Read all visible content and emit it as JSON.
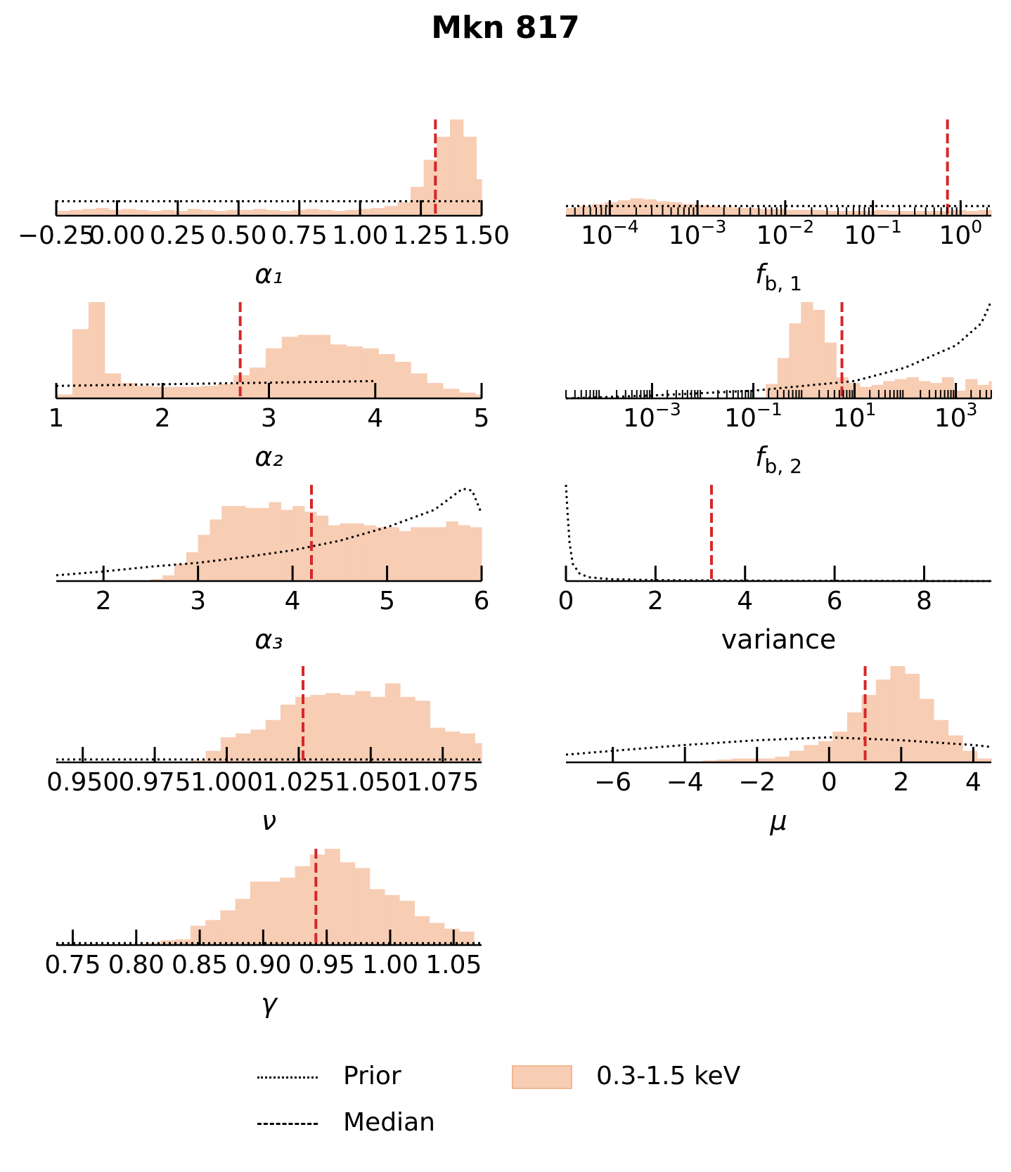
{
  "title": "Mkn 817",
  "colors": {
    "hist_fill": "#f7cdb4",
    "median": "#d62728",
    "prior": "#000000",
    "axis": "#000000"
  },
  "legend": {
    "placement": "bottom-center",
    "items": [
      {
        "label": "Prior",
        "style": "dotted"
      },
      {
        "label": "Median",
        "style": "dashed"
      },
      {
        "label": "0.3-1.5 keV",
        "style": "patch"
      }
    ]
  },
  "chart_data": [
    {
      "type": "bar",
      "xlabel": "α₁",
      "scale": "linear",
      "xlim": [
        -0.25,
        1.5
      ],
      "tick_values": [
        -0.25,
        0.0,
        0.25,
        0.5,
        0.75,
        1.0,
        1.25,
        1.5
      ],
      "tick_labels": [
        "−0.25",
        "0.00",
        "0.25",
        "0.50",
        "0.75",
        "1.00",
        "1.25",
        "1.50"
      ],
      "bins": {
        "start": -0.25,
        "width": 0.054,
        "counts": [
          0.05,
          0.06,
          0.07,
          0.08,
          0.06,
          0.07,
          0.06,
          0.05,
          0.06,
          0.05,
          0.07,
          0.06,
          0.05,
          0.06,
          0.06,
          0.07,
          0.06,
          0.05,
          0.06,
          0.07,
          0.06,
          0.05,
          0.06,
          0.07,
          0.08,
          0.1,
          0.14,
          0.3,
          0.58,
          0.82,
          1.0,
          0.82,
          0.38
        ]
      },
      "median": 1.31,
      "prior": {
        "x": [
          -0.25,
          1.5
        ],
        "y": [
          0.15,
          0.15
        ]
      }
    },
    {
      "type": "bar",
      "xlabel": "f_{b,1}",
      "scale": "log",
      "xlim": [
        -4.5,
        0.35
      ],
      "tick_values": [
        -4,
        -3,
        -2,
        -1,
        0
      ],
      "tick_labels": [
        "10^-4",
        "10^-3",
        "10^-2",
        "10^-1",
        "10^0"
      ],
      "bins": {
        "start": -4.5,
        "width": 0.147,
        "counts": [
          0.08,
          0.1,
          0.12,
          0.14,
          0.16,
          0.18,
          0.17,
          0.15,
          0.14,
          0.12,
          0.11,
          0.1,
          0.09,
          0.08,
          0.08,
          0.07,
          0.07,
          0.06,
          0.06,
          0.06,
          0.05,
          0.05,
          0.05,
          0.05,
          0.06,
          0.05,
          0.05,
          0.05,
          0.05,
          0.05,
          0.06,
          0.05,
          0.06,
          0.28,
          0.52,
          0.92,
          1.0,
          0.68,
          0.08
        ]
      },
      "median": -0.15,
      "prior": {
        "x": [
          -4.5,
          0.35
        ],
        "y": [
          0.1,
          0.1
        ]
      }
    },
    {
      "type": "bar",
      "xlabel": "α₂",
      "scale": "linear",
      "xlim": [
        1,
        5
      ],
      "tick_values": [
        1,
        2,
        3,
        4,
        5
      ],
      "tick_labels": [
        "1",
        "2",
        "3",
        "4",
        "5"
      ],
      "bins": {
        "start": 1.0,
        "width": 0.1515,
        "counts": [
          0.04,
          0.72,
          1.0,
          0.26,
          0.16,
          0.13,
          0.12,
          0.12,
          0.12,
          0.13,
          0.15,
          0.24,
          0.32,
          0.52,
          0.64,
          0.66,
          0.66,
          0.56,
          0.54,
          0.52,
          0.46,
          0.38,
          0.26,
          0.16,
          0.1,
          0.06,
          0.04
        ]
      },
      "median": 2.73,
      "prior": {
        "x": [
          1,
          4
        ],
        "y": [
          0.13,
          0.18
        ]
      }
    },
    {
      "type": "bar",
      "xlabel": "f_{b,2}",
      "scale": "log",
      "xlim": [
        -4.7,
        3.7
      ],
      "tick_values": [
        -3,
        -1,
        1,
        3
      ],
      "tick_labels": [
        "10^-3",
        "10^-1",
        "10^1",
        "10^3"
      ],
      "bins": {
        "start": -4.7,
        "width": 0.232,
        "counts": [
          0,
          0,
          0,
          0,
          0,
          0,
          0,
          0,
          0,
          0,
          0,
          0,
          0,
          0,
          0,
          0,
          0,
          0.15,
          0.42,
          0.78,
          1.0,
          0.92,
          0.58,
          0.22,
          0.16,
          0.12,
          0.14,
          0.18,
          0.2,
          0.22,
          0.18,
          0.16,
          0.22,
          0.08,
          0.2,
          0.14,
          0.18,
          0.22,
          0.2,
          0.23,
          0.18,
          0.14
        ]
      },
      "median": 0.75,
      "prior": {
        "x": [
          -4.7,
          -3,
          -1,
          1,
          2,
          3,
          3.5,
          3.65,
          3.68
        ],
        "y": [
          0.0,
          0.03,
          0.08,
          0.18,
          0.32,
          0.55,
          0.78,
          0.95,
          1.0
        ]
      }
    },
    {
      "type": "bar",
      "xlabel": "α₃",
      "scale": "linear",
      "xlim": [
        1.5,
        6
      ],
      "tick_values": [
        2,
        3,
        4,
        5,
        6
      ],
      "tick_labels": [
        "2",
        "3",
        "4",
        "5",
        "6"
      ],
      "bins": {
        "start": 2.5,
        "width": 0.125,
        "counts": [
          0.02,
          0.06,
          0.18,
          0.3,
          0.48,
          0.64,
          0.78,
          0.78,
          0.76,
          0.76,
          0.82,
          0.74,
          0.78,
          0.72,
          0.68,
          0.58,
          0.6,
          0.6,
          0.58,
          0.56,
          0.56,
          0.52,
          0.56,
          0.56,
          0.56,
          0.62,
          0.58,
          0.56,
          0.54
        ]
      },
      "median": 4.2,
      "prior": {
        "x": [
          1.5,
          2.0,
          2.5,
          3.0,
          3.5,
          4.0,
          4.5,
          5.0,
          5.5,
          5.8,
          5.9,
          6.0
        ],
        "y": [
          0.06,
          0.1,
          0.15,
          0.19,
          0.25,
          0.32,
          0.42,
          0.56,
          0.74,
          0.96,
          0.94,
          0.7
        ]
      }
    },
    {
      "type": "bar",
      "xlabel": "variance",
      "scale": "linear",
      "xlim": [
        0,
        9.5
      ],
      "tick_values": [
        0,
        2,
        4,
        6,
        8
      ],
      "tick_labels": [
        "0",
        "2",
        "4",
        "6",
        "8"
      ],
      "bins": {
        "start": 0,
        "width": 0.25,
        "counts": []
      },
      "median": 3.25,
      "prior": {
        "x": [
          0.0,
          0.03,
          0.08,
          0.15,
          0.3,
          0.5,
          1.0,
          2.0,
          4.0,
          9.5
        ],
        "y": [
          1.0,
          0.75,
          0.4,
          0.18,
          0.08,
          0.04,
          0.02,
          0.01,
          0.005,
          0.0
        ]
      }
    },
    {
      "type": "bar",
      "xlabel": "ν",
      "scale": "linear",
      "xlim": [
        0.9408,
        1.0885
      ],
      "tick_values": [
        0.95,
        0.975,
        1.0,
        1.025,
        1.05,
        1.075
      ],
      "tick_labels": [
        "0.950",
        "0.975",
        "1.000",
        "1.025",
        "1.050",
        "1.075"
      ],
      "bins": {
        "start": 0.9408,
        "width": 0.00519,
        "counts": [
          0,
          0,
          0,
          0,
          0,
          0,
          0,
          0,
          0,
          0.02,
          0.12,
          0.26,
          0.3,
          0.34,
          0.44,
          0.6,
          0.68,
          0.7,
          0.72,
          0.7,
          0.74,
          0.68,
          0.82,
          0.68,
          0.64,
          0.36,
          0.32,
          0.3,
          0.2,
          0.08,
          0.05
        ]
      },
      "median": 1.0265,
      "prior": {
        "x": [
          0.9408,
          1.0885
        ],
        "y": [
          0.03,
          0.03
        ]
      }
    },
    {
      "type": "bar",
      "xlabel": "μ",
      "scale": "linear",
      "xlim": [
        -7.3,
        4.5
      ],
      "tick_values": [
        -6,
        -4,
        -2,
        0,
        2,
        4
      ],
      "tick_labels": [
        "−6",
        "−4",
        "−2",
        "0",
        "2",
        "4"
      ],
      "bins": {
        "start": -3.5,
        "width": 0.4,
        "counts": [
          0.02,
          0.03,
          0.04,
          0.04,
          0.04,
          0.06,
          0.12,
          0.18,
          0.22,
          0.32,
          0.52,
          0.7,
          0.86,
          1.0,
          0.92,
          0.66,
          0.44,
          0.28,
          0.12,
          0.04
        ]
      },
      "median": 1.0,
      "prior": {
        "x": [
          -7.3,
          -6,
          -4,
          -2,
          0,
          2,
          4,
          4.5
        ],
        "y": [
          0.08,
          0.12,
          0.18,
          0.23,
          0.26,
          0.23,
          0.18,
          0.16
        ]
      }
    },
    {
      "type": "bar",
      "xlabel": "γ",
      "scale": "linear",
      "xlim": [
        0.737,
        1.072
      ],
      "tick_values": [
        0.75,
        0.8,
        0.85,
        0.9,
        0.95,
        1.0,
        1.05
      ],
      "tick_labels": [
        "0.75",
        "0.80",
        "0.85",
        "0.90",
        "0.95",
        "1.00",
        "1.05"
      ],
      "bins": {
        "start": 0.737,
        "width": 0.01175,
        "counts": [
          0,
          0,
          0,
          0,
          0,
          0,
          0.02,
          0.05,
          0.06,
          0.2,
          0.26,
          0.36,
          0.48,
          0.66,
          0.66,
          0.7,
          0.82,
          0.94,
          1.0,
          0.86,
          0.8,
          0.58,
          0.52,
          0.46,
          0.3,
          0.23,
          0.17,
          0.14
        ]
      },
      "median": 0.9415,
      "prior": {
        "x": [
          0.737,
          1.072
        ],
        "y": [
          0.02,
          0.02
        ]
      }
    }
  ]
}
